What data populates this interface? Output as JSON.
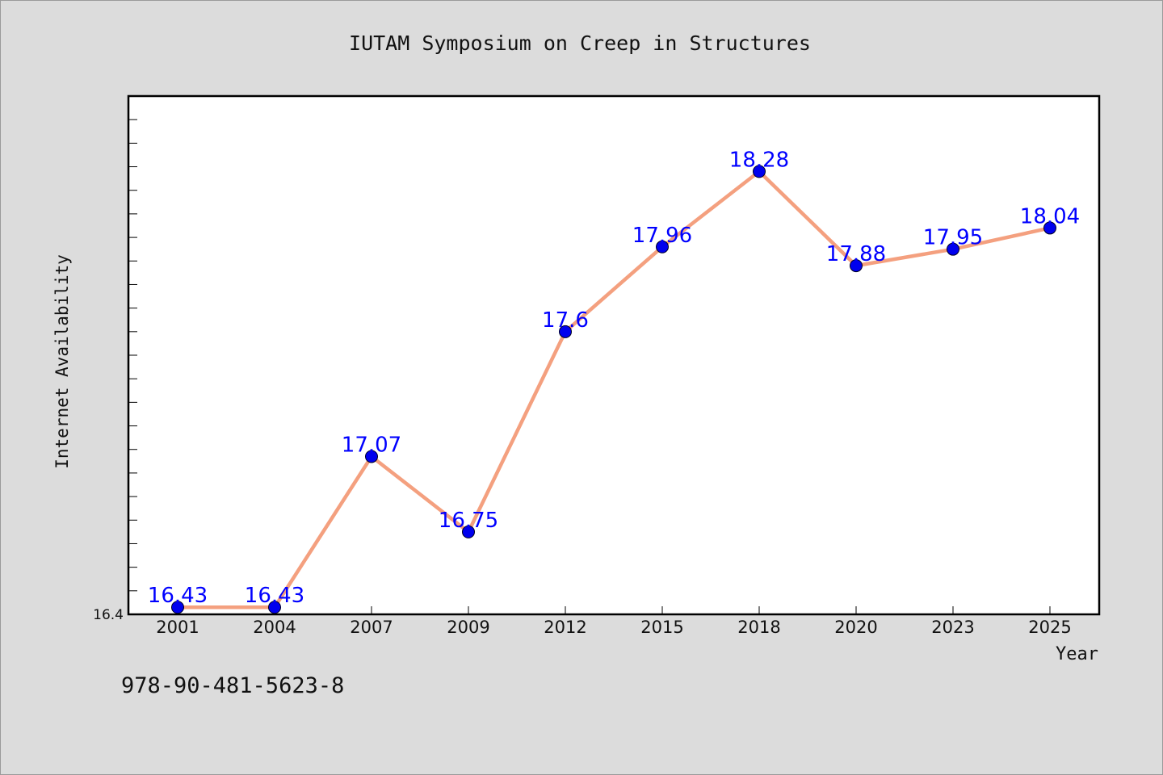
{
  "chart_data": {
    "type": "line",
    "title": "IUTAM Symposium on Creep in Structures",
    "xlabel": "Year",
    "ylabel": "Internet Availability",
    "categories": [
      "2001",
      "2004",
      "2007",
      "2009",
      "2012",
      "2015",
      "2018",
      "2020",
      "2023",
      "2025"
    ],
    "series": [
      {
        "values": [
          16.43,
          16.43,
          17.07,
          16.75,
          17.6,
          17.96,
          18.28,
          17.88,
          17.95,
          18.04
        ],
        "labels": [
          "16.43",
          "16.43",
          "17.07",
          "16.75",
          "17.6",
          "17.96",
          "18.28",
          "17.88",
          "17.95",
          "18.04"
        ]
      }
    ],
    "ylim": [
      16.4,
      18.6
    ],
    "y_tick_labels": [
      "16.4"
    ],
    "grid": false,
    "colors": {
      "line": "#f4a07f",
      "marker": "#0000ee",
      "data_label": "#0000ff",
      "plot_background": "#ffffff",
      "figure_background": "#dcdcdc"
    }
  },
  "footer": {
    "isbn": "978-90-481-5623-8"
  }
}
